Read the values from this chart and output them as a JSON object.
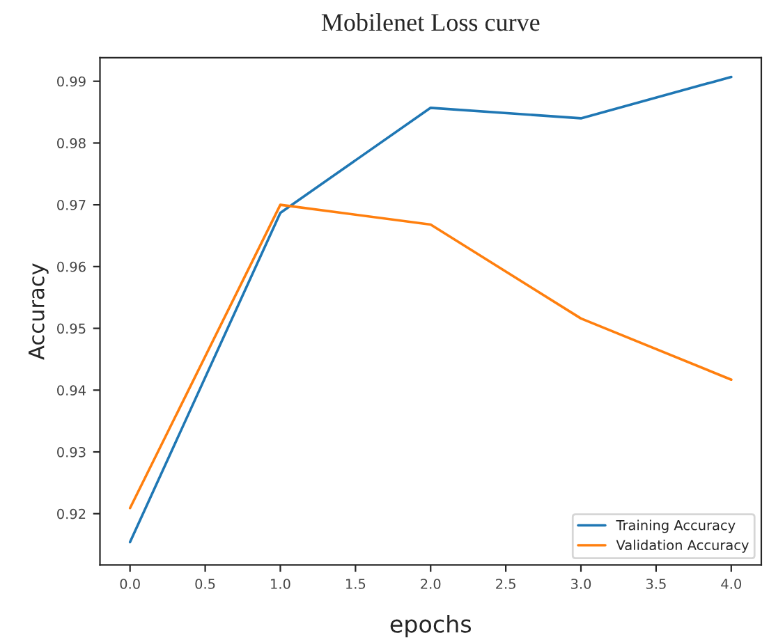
{
  "chart_data": {
    "type": "line",
    "title": "Mobilenet Loss curve",
    "xlabel": "epochs",
    "ylabel": "Accuracy",
    "x": [
      0,
      1,
      2,
      3,
      4
    ],
    "series": [
      {
        "name": "Training Accuracy",
        "color": "#1f77b4",
        "values": [
          0.9154,
          0.9687,
          0.9857,
          0.984,
          0.9907
        ]
      },
      {
        "name": "Validation Accuracy",
        "color": "#ff7f0e",
        "values": [
          0.9209,
          0.97,
          0.9668,
          0.9516,
          0.9417
        ]
      }
    ],
    "xlim": [
      -0.2,
      4.2
    ],
    "xticks": [
      {
        "value": 0,
        "label": "0.0"
      },
      0.5,
      {
        "value": 1,
        "label": "1.0"
      },
      1.5,
      {
        "value": 2,
        "label": "2.0"
      },
      2.5,
      {
        "value": 3,
        "label": "3.0"
      },
      3.5,
      {
        "value": 4,
        "label": "4.0"
      }
    ],
    "ylim": [
      0.9117,
      0.9938
    ],
    "yticks": [
      0.92,
      0.93,
      0.94,
      0.95,
      0.96,
      0.97,
      0.98,
      0.99
    ],
    "grid": false,
    "legend": "lower right",
    "marker": "none",
    "line_style": "solid"
  }
}
